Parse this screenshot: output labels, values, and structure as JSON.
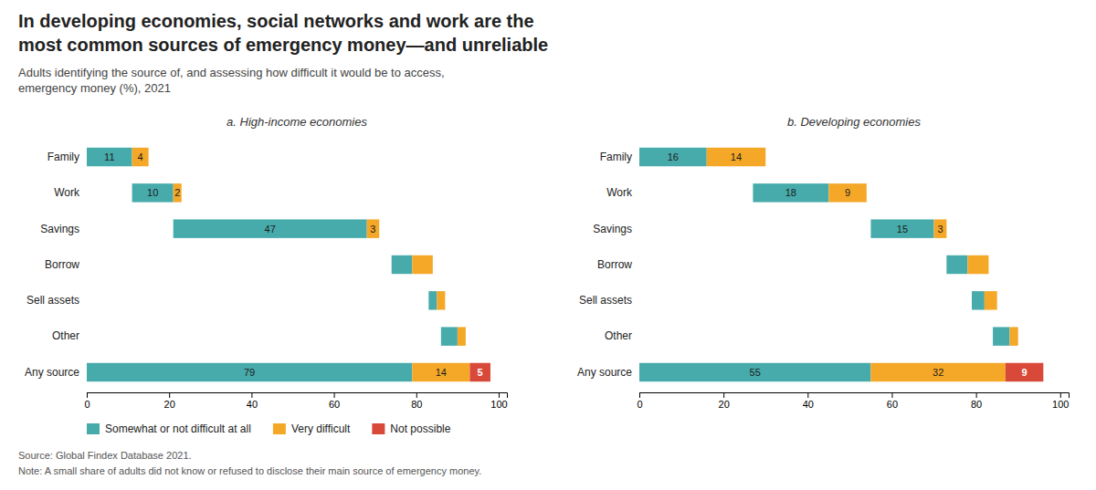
{
  "title": [
    "In developing economies, social networks and work are the",
    "most common sources of emergency money—and unreliable"
  ],
  "subtitle": [
    "Adults identifying the source of, and assessing how difficult it would be to access,",
    "emergency money (%), 2021"
  ],
  "source": "Source: Global Findex Database 2021.",
  "note": "Note: A small share of adults did not know or refused to disclose their main source of emergency money.",
  "chart_data": [
    {
      "type": "bar",
      "orientation": "horizontal",
      "title": "a. High-income economies",
      "categories": [
        "Family",
        "Work",
        "Savings",
        "Borrow",
        "Sell assets",
        "Other",
        "Any source"
      ],
      "xlim": [
        0,
        102
      ],
      "xticks": [
        0,
        20,
        40,
        60,
        80,
        100
      ],
      "grid": false,
      "data_labels": true,
      "legend": "bottom",
      "series": [
        {
          "name": "Somewhat or not difficult at all",
          "color": "#48ABAB",
          "starts": [
            0,
            11,
            21,
            74,
            83,
            86,
            0
          ],
          "values": [
            11,
            10,
            47,
            5,
            2,
            4,
            79
          ],
          "value_labels": [
            "11",
            "10",
            "47",
            null,
            null,
            null,
            "79"
          ]
        },
        {
          "name": "Very difficult",
          "color": "#F5A828",
          "starts": [
            11,
            21,
            68,
            79,
            85,
            90,
            79
          ],
          "values": [
            4,
            2,
            3,
            5,
            2,
            2,
            14
          ],
          "value_labels": [
            "4",
            "2",
            "3",
            null,
            null,
            null,
            "14"
          ]
        },
        {
          "name": "Not possible",
          "color": "#D9493A",
          "starts": [
            null,
            null,
            null,
            null,
            null,
            null,
            93
          ],
          "values": [
            null,
            null,
            null,
            null,
            null,
            null,
            5
          ],
          "value_labels": [
            null,
            null,
            null,
            null,
            null,
            null,
            "5"
          ]
        }
      ]
    },
    {
      "type": "bar",
      "orientation": "horizontal",
      "title": "b. Developing economies",
      "categories": [
        "Family",
        "Work",
        "Savings",
        "Borrow",
        "Sell assets",
        "Other",
        "Any source"
      ],
      "xlim": [
        0,
        102
      ],
      "xticks": [
        0,
        20,
        40,
        60,
        80,
        100
      ],
      "grid": false,
      "data_labels": true,
      "series": [
        {
          "name": "Somewhat or not difficult at all",
          "color": "#48ABAB",
          "starts": [
            0,
            27,
            55,
            73,
            79,
            84,
            0
          ],
          "values": [
            16,
            18,
            15,
            5,
            3,
            4,
            55
          ],
          "value_labels": [
            "16",
            "18",
            "15",
            null,
            null,
            null,
            "55"
          ]
        },
        {
          "name": "Very difficult",
          "color": "#F5A828",
          "starts": [
            16,
            45,
            70,
            78,
            82,
            88,
            55
          ],
          "values": [
            14,
            9,
            3,
            5,
            3,
            2,
            32
          ],
          "value_labels": [
            "14",
            "9",
            "3",
            null,
            null,
            null,
            "32"
          ]
        },
        {
          "name": "Not possible",
          "color": "#D9493A",
          "starts": [
            null,
            null,
            null,
            null,
            null,
            null,
            87
          ],
          "values": [
            null,
            null,
            null,
            null,
            null,
            null,
            9
          ],
          "value_labels": [
            null,
            null,
            null,
            null,
            null,
            null,
            "9"
          ]
        }
      ]
    }
  ]
}
